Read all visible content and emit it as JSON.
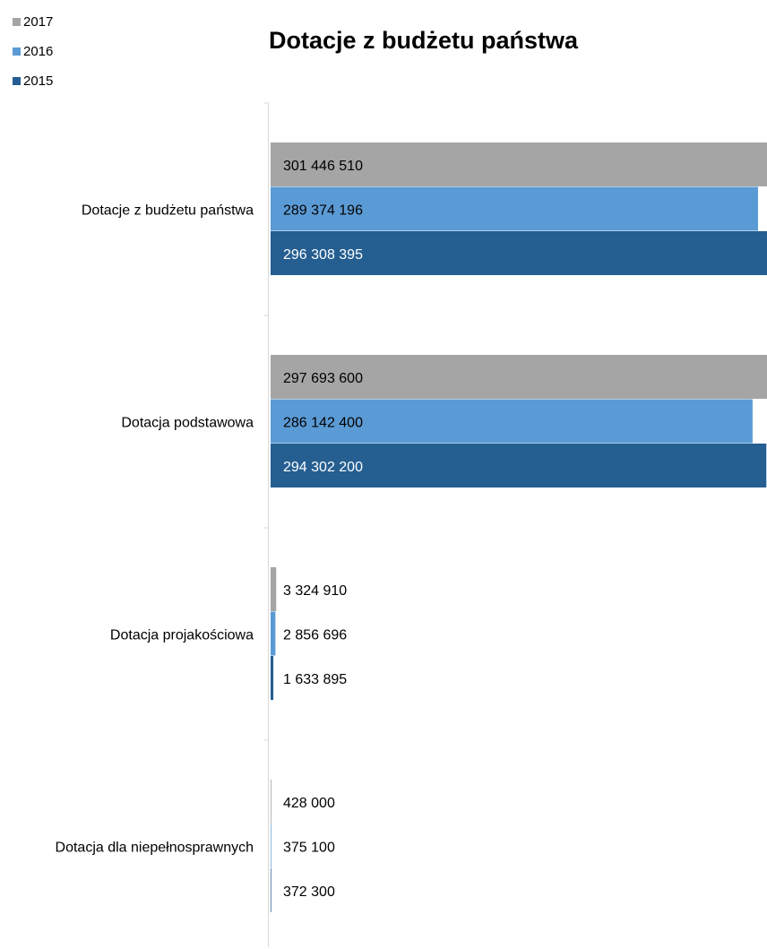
{
  "chart_data": {
    "type": "bar",
    "orientation": "horizontal",
    "title": "Dotacje z budżetu państwa",
    "categories": [
      "Dotacje z budżetu państwa",
      "Dotacja podstawowa",
      "Dotacja projakościowa",
      "Dotacja dla niepełnosprawnych"
    ],
    "series": [
      {
        "name": "2017",
        "color": "#a5a5a5",
        "values": [
          301446510,
          297693600,
          3324910,
          428000
        ],
        "labels": [
          "301 446 510",
          "297 693 600",
          "3 324 910",
          "428 000"
        ]
      },
      {
        "name": "2016",
        "color": "#5b9bd5",
        "values": [
          289374196,
          286142400,
          2856696,
          375100
        ],
        "labels": [
          "289 374 196",
          "286 142 400",
          "2 856 696",
          "375 100"
        ]
      },
      {
        "name": "2015",
        "color": "#255e91",
        "values": [
          296308395,
          294302200,
          1633895,
          372300
        ],
        "labels": [
          "296 308 395",
          "294 302 200",
          "1 633 895",
          "372 300"
        ]
      }
    ],
    "legend_position": "top-left",
    "grid": false
  }
}
